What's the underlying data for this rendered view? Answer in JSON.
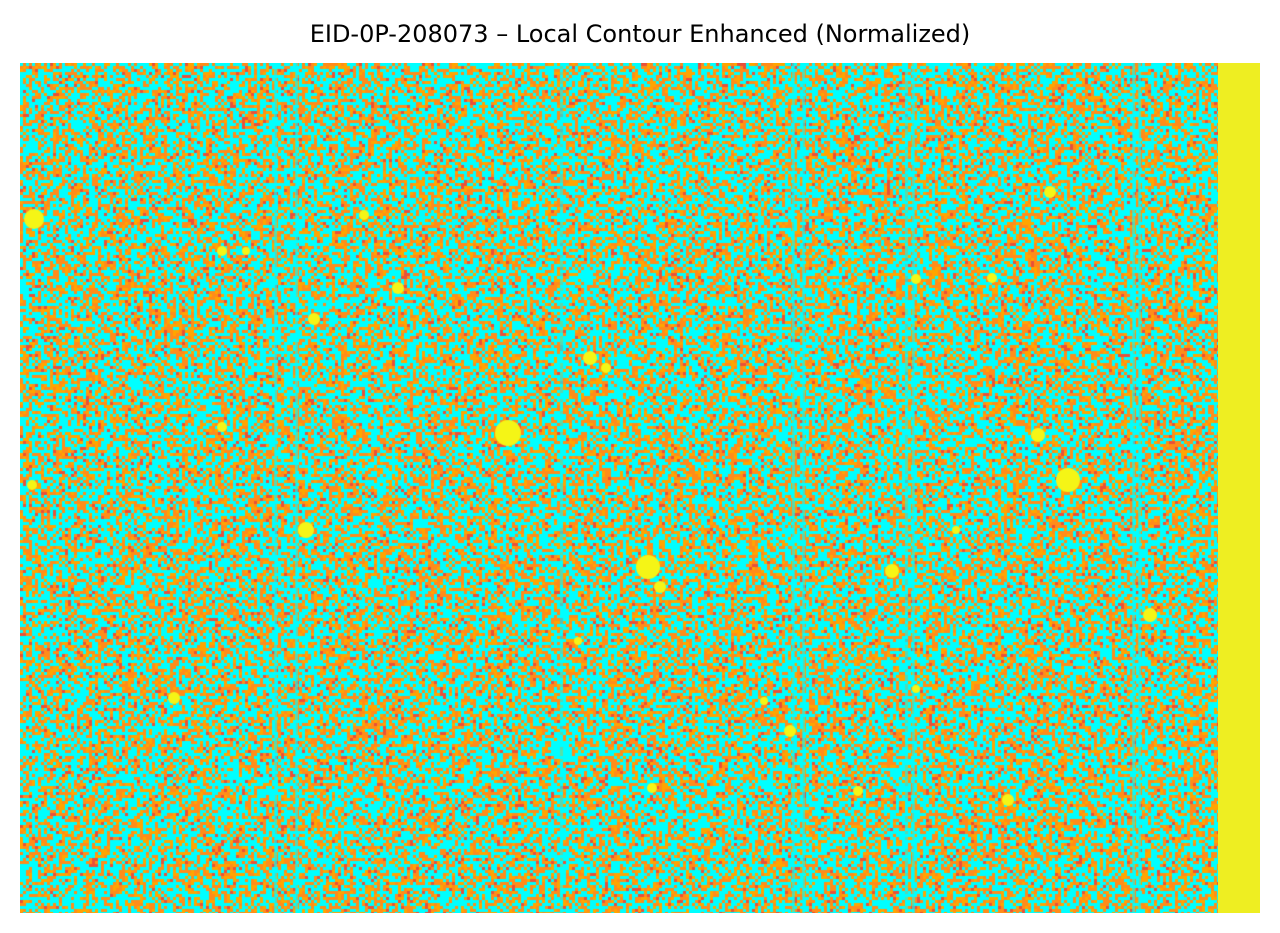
{
  "figure": {
    "title": "EID-0P-208073 – Local Contour Enhanced (Normalized)"
  },
  "image": {
    "description_icon": "false-color-astronomical-image",
    "colormap": {
      "background": "#00ffff",
      "noise_low": "#ff8c1a",
      "noise_mid": "#ffa500",
      "noise_high": "#e8503a",
      "source": "#f5f516",
      "edge_strip": "#eeee22"
    }
  }
}
